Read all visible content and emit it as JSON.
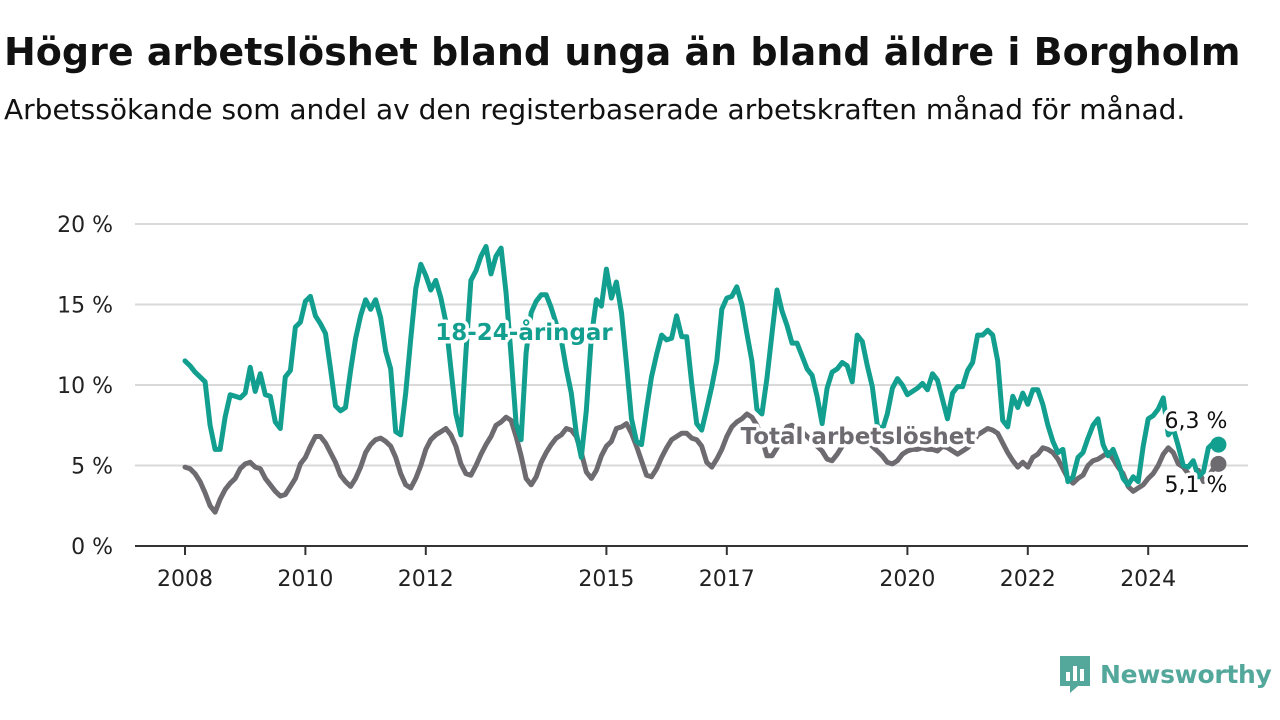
{
  "title": "Högre arbetslöshet bland unga än bland äldre i Borgholm",
  "subtitle": "Arbetssökande som andel av den registerbaserade arbetskraften månad för månad.",
  "logo": {
    "text": "Newsworthy",
    "icon": "newsworthy-chart-icon"
  },
  "colors": {
    "youth": "#139f8f",
    "total": "#6d6b70",
    "grid": "#d9d9d9",
    "axis": "#333333",
    "logo": "#53a79b"
  },
  "chart_data": {
    "type": "line",
    "x_ticks": [
      "2008",
      "2010",
      "2012",
      "2015",
      "2017",
      "2020",
      "2022",
      "2024"
    ],
    "y_ticks": [
      "0 %",
      "5 %",
      "10 %",
      "15 %",
      "20 %"
    ],
    "ylim": [
      0,
      20
    ],
    "grid": true,
    "x_start": "2008-01",
    "x_end": "2025-01",
    "series": [
      {
        "name": "18-24-åringar",
        "color": "#139f8f",
        "end_label": "6,3 %",
        "values": [
          11.5,
          11.2,
          10.8,
          10.5,
          10.2,
          7.5,
          6.0,
          6.0,
          8.0,
          9.4,
          9.3,
          9.2,
          9.5,
          11.1,
          9.6,
          10.7,
          9.4,
          9.3,
          7.7,
          7.3,
          10.5,
          10.9,
          13.6,
          13.9,
          15.2,
          15.5,
          14.3,
          13.8,
          13.2,
          11.0,
          8.7,
          8.4,
          8.6,
          10.9,
          12.9,
          14.3,
          15.3,
          14.7,
          15.3,
          14.2,
          12.1,
          11.0,
          7.1,
          6.9,
          9.5,
          12.9,
          16.0,
          17.5,
          16.8,
          15.9,
          16.5,
          15.4,
          13.9,
          11.0,
          8.2,
          6.9,
          12.0,
          16.5,
          17.1,
          18.0,
          18.6,
          16.9,
          18.0,
          18.5,
          15.7,
          11.8,
          7.6,
          6.6,
          12.0,
          14.5,
          15.2,
          15.6,
          15.6,
          14.8,
          13.8,
          12.8,
          11.0,
          9.5,
          7.0,
          5.5,
          8.4,
          13.0,
          15.3,
          14.9,
          17.2,
          15.4,
          16.4,
          14.5,
          11.3,
          7.9,
          6.5,
          6.3,
          8.5,
          10.5,
          11.9,
          13.1,
          12.8,
          12.9,
          14.3,
          13.0,
          13.0,
          10.1,
          7.6,
          7.2,
          8.5,
          9.9,
          11.5,
          14.7,
          15.4,
          15.5,
          16.1,
          15.0,
          13.2,
          11.5,
          8.5,
          8.2,
          10.4,
          13.2,
          15.9,
          14.6,
          13.7,
          12.6,
          12.6,
          11.8,
          11.0,
          10.6,
          9.3,
          7.6,
          9.8,
          10.8,
          11.0,
          11.4,
          11.2,
          10.2,
          13.1,
          12.7,
          11.2,
          9.9,
          7.5,
          7.2,
          8.2,
          9.8,
          10.4,
          10.0,
          9.4,
          9.6,
          9.8,
          10.1,
          9.7,
          10.7,
          10.3,
          9.1,
          7.9,
          9.5,
          9.9,
          9.9,
          10.9,
          11.4,
          13.1,
          13.1,
          13.4,
          13.1,
          11.5,
          7.8,
          7.4,
          9.3,
          8.6,
          9.5,
          8.8,
          9.7,
          9.7,
          8.8,
          7.5,
          6.5,
          5.8,
          6.0,
          4.0,
          4.3,
          5.5,
          5.8,
          6.7,
          7.5,
          7.9,
          6.3,
          5.6,
          6.0,
          5.2,
          4.2,
          3.8,
          4.3,
          4.0,
          6.2,
          7.9,
          8.1,
          8.5,
          9.2,
          6.9,
          7.3,
          6.2,
          5.0,
          4.9,
          5.3,
          4.3,
          4.6,
          6.1,
          6.4,
          6.3
        ]
      },
      {
        "name": "Total arbetslöshet",
        "color": "#6d6b70",
        "end_label": "5,1 %",
        "values": [
          4.9,
          4.8,
          4.5,
          4.0,
          3.3,
          2.5,
          2.1,
          2.9,
          3.5,
          3.9,
          4.2,
          4.8,
          5.1,
          5.2,
          4.9,
          4.8,
          4.2,
          3.8,
          3.4,
          3.1,
          3.2,
          3.7,
          4.2,
          5.1,
          5.5,
          6.2,
          6.8,
          6.8,
          6.4,
          5.8,
          5.2,
          4.4,
          4.0,
          3.7,
          4.2,
          4.9,
          5.8,
          6.3,
          6.6,
          6.7,
          6.5,
          6.2,
          5.5,
          4.5,
          3.8,
          3.6,
          4.2,
          5.0,
          6.0,
          6.6,
          6.9,
          7.1,
          7.3,
          6.9,
          6.2,
          5.1,
          4.5,
          4.4,
          5.0,
          5.7,
          6.3,
          6.8,
          7.5,
          7.7,
          8.0,
          7.8,
          6.8,
          5.6,
          4.2,
          3.8,
          4.3,
          5.2,
          5.8,
          6.3,
          6.7,
          6.9,
          7.3,
          7.2,
          6.8,
          5.8,
          4.6,
          4.2,
          4.7,
          5.6,
          6.2,
          6.5,
          7.3,
          7.4,
          7.6,
          7.0,
          6.2,
          5.3,
          4.4,
          4.3,
          4.8,
          5.5,
          6.1,
          6.6,
          6.8,
          7.0,
          7.0,
          6.7,
          6.6,
          6.2,
          5.2,
          4.9,
          5.4,
          6.0,
          6.8,
          7.4,
          7.7,
          7.9,
          8.2,
          8.0,
          7.5,
          6.7,
          5.6,
          5.6,
          6.1,
          6.8,
          7.4,
          7.5,
          7.3,
          7.1,
          6.8,
          6.5,
          6.2,
          5.9,
          5.4,
          5.3,
          5.7,
          6.2,
          6.5,
          6.6,
          6.7,
          6.5,
          6.5,
          6.2,
          5.9,
          5.6,
          5.2,
          5.1,
          5.3,
          5.7,
          5.9,
          6.0,
          6.0,
          6.1,
          6.0,
          6.0,
          5.9,
          6.2,
          6.1,
          5.9,
          5.7,
          5.9,
          6.1,
          6.4,
          6.9,
          7.1,
          7.3,
          7.2,
          7.0,
          6.4,
          5.8,
          5.3,
          4.9,
          5.2,
          4.9,
          5.5,
          5.7,
          6.1,
          6.0,
          5.8,
          5.4,
          4.8,
          4.2,
          3.9,
          4.2,
          4.4,
          5.0,
          5.3,
          5.4,
          5.6,
          5.8,
          5.4,
          4.9,
          4.5,
          3.7,
          3.4,
          3.6,
          3.8,
          4.2,
          4.5,
          5.0,
          5.7,
          6.1,
          5.8,
          5.1,
          4.9,
          4.5,
          4.3,
          4.7,
          4.0,
          4.3,
          4.8,
          5.1
        ]
      }
    ]
  }
}
